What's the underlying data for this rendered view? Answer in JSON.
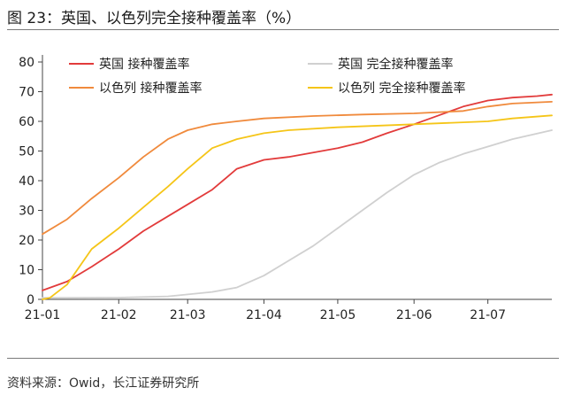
{
  "header": {
    "title": "图 23：英国、以色列完全接种覆盖率（%）"
  },
  "footer": {
    "source": "资料来源：Owid，长江证券研究所"
  },
  "chart_data": {
    "type": "line",
    "xlim": [
      "2021-01-01",
      "2021-07-27"
    ],
    "ylim": [
      0,
      80
    ],
    "y_ticks": [
      0,
      10,
      20,
      30,
      40,
      50,
      60,
      70,
      80
    ],
    "x_ticks": [
      {
        "label": "21-01",
        "date": "2021-01-01"
      },
      {
        "label": "21-02",
        "date": "2021-02-01"
      },
      {
        "label": "21-03",
        "date": "2021-03-01"
      },
      {
        "label": "21-04",
        "date": "2021-04-01"
      },
      {
        "label": "21-05",
        "date": "2021-05-01"
      },
      {
        "label": "21-06",
        "date": "2021-06-01"
      },
      {
        "label": "21-07",
        "date": "2021-07-01"
      }
    ],
    "grid": false,
    "legend_position": "top",
    "series": [
      {
        "name": "英国 接种覆盖率",
        "color": "#e23b3b",
        "points": [
          {
            "x": "2021-01-01",
            "y": 3
          },
          {
            "x": "2021-01-11",
            "y": 6
          },
          {
            "x": "2021-01-21",
            "y": 11
          },
          {
            "x": "2021-02-01",
            "y": 17
          },
          {
            "x": "2021-02-11",
            "y": 23
          },
          {
            "x": "2021-02-21",
            "y": 28
          },
          {
            "x": "2021-03-01",
            "y": 32
          },
          {
            "x": "2021-03-11",
            "y": 37
          },
          {
            "x": "2021-03-21",
            "y": 44
          },
          {
            "x": "2021-04-01",
            "y": 47
          },
          {
            "x": "2021-04-11",
            "y": 48
          },
          {
            "x": "2021-04-21",
            "y": 49.5
          },
          {
            "x": "2021-05-01",
            "y": 51
          },
          {
            "x": "2021-05-11",
            "y": 53
          },
          {
            "x": "2021-05-21",
            "y": 56
          },
          {
            "x": "2021-06-01",
            "y": 59
          },
          {
            "x": "2021-06-11",
            "y": 62
          },
          {
            "x": "2021-06-21",
            "y": 65
          },
          {
            "x": "2021-07-01",
            "y": 67
          },
          {
            "x": "2021-07-11",
            "y": 68
          },
          {
            "x": "2021-07-21",
            "y": 68.5
          },
          {
            "x": "2021-07-27",
            "y": 69
          }
        ]
      },
      {
        "name": "以色列 接种覆盖率",
        "color": "#f08a3c",
        "points": [
          {
            "x": "2021-01-01",
            "y": 22
          },
          {
            "x": "2021-01-11",
            "y": 27
          },
          {
            "x": "2021-01-21",
            "y": 34
          },
          {
            "x": "2021-02-01",
            "y": 41
          },
          {
            "x": "2021-02-11",
            "y": 48
          },
          {
            "x": "2021-02-21",
            "y": 54
          },
          {
            "x": "2021-03-01",
            "y": 57
          },
          {
            "x": "2021-03-11",
            "y": 59
          },
          {
            "x": "2021-03-21",
            "y": 60
          },
          {
            "x": "2021-04-01",
            "y": 61
          },
          {
            "x": "2021-04-21",
            "y": 61.8
          },
          {
            "x": "2021-05-11",
            "y": 62.3
          },
          {
            "x": "2021-06-01",
            "y": 62.7
          },
          {
            "x": "2021-06-21",
            "y": 63.5
          },
          {
            "x": "2021-07-01",
            "y": 65
          },
          {
            "x": "2021-07-11",
            "y": 66
          },
          {
            "x": "2021-07-27",
            "y": 66.6
          }
        ]
      },
      {
        "name": "英国 完全接种覆盖率",
        "color": "#d0d0d0",
        "points": [
          {
            "x": "2021-01-01",
            "y": 0.5
          },
          {
            "x": "2021-02-01",
            "y": 0.6
          },
          {
            "x": "2021-02-21",
            "y": 1
          },
          {
            "x": "2021-03-11",
            "y": 2.5
          },
          {
            "x": "2021-03-21",
            "y": 4
          },
          {
            "x": "2021-04-01",
            "y": 8
          },
          {
            "x": "2021-04-11",
            "y": 13
          },
          {
            "x": "2021-04-21",
            "y": 18
          },
          {
            "x": "2021-05-01",
            "y": 24
          },
          {
            "x": "2021-05-11",
            "y": 30
          },
          {
            "x": "2021-05-21",
            "y": 36
          },
          {
            "x": "2021-06-01",
            "y": 42
          },
          {
            "x": "2021-06-11",
            "y": 46
          },
          {
            "x": "2021-06-21",
            "y": 49
          },
          {
            "x": "2021-07-01",
            "y": 51.5
          },
          {
            "x": "2021-07-11",
            "y": 54
          },
          {
            "x": "2021-07-27",
            "y": 57
          }
        ]
      },
      {
        "name": "以色列 完全接种覆盖率",
        "color": "#f5c518",
        "points": [
          {
            "x": "2021-01-01",
            "y": 0
          },
          {
            "x": "2021-01-04",
            "y": 0.5
          },
          {
            "x": "2021-01-11",
            "y": 5
          },
          {
            "x": "2021-01-21",
            "y": 17
          },
          {
            "x": "2021-02-01",
            "y": 24
          },
          {
            "x": "2021-02-11",
            "y": 31
          },
          {
            "x": "2021-02-21",
            "y": 38
          },
          {
            "x": "2021-03-01",
            "y": 44
          },
          {
            "x": "2021-03-11",
            "y": 51
          },
          {
            "x": "2021-03-21",
            "y": 54
          },
          {
            "x": "2021-04-01",
            "y": 56
          },
          {
            "x": "2021-04-11",
            "y": 57
          },
          {
            "x": "2021-05-01",
            "y": 58
          },
          {
            "x": "2021-06-01",
            "y": 59
          },
          {
            "x": "2021-07-01",
            "y": 60
          },
          {
            "x": "2021-07-11",
            "y": 61
          },
          {
            "x": "2021-07-27",
            "y": 62
          }
        ]
      }
    ]
  }
}
